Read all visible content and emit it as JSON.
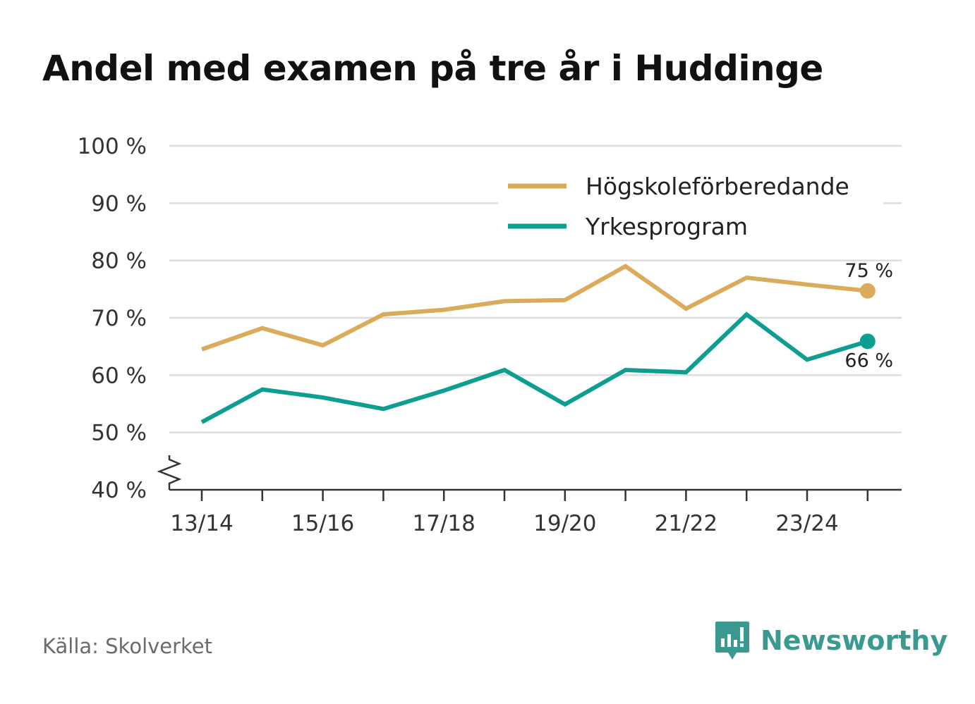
{
  "title": "Andel med examen på tre år i Huddinge",
  "source": "Källa: Skolverket",
  "brand": {
    "name": "Newsworthy",
    "icon": "newsworthy-logo-icon"
  },
  "colors": {
    "hogskole": "#d9ab5a",
    "yrkes": "#0d9e92",
    "grid": "#dddddd",
    "axis": "#333333",
    "brand": "#3a9a8f"
  },
  "chart_data": {
    "type": "line",
    "title": "Andel med examen på tre år i Huddinge",
    "xlabel": "",
    "ylabel": "",
    "ylim": [
      40,
      100
    ],
    "y_axis_break": true,
    "yticks": [
      40,
      50,
      60,
      70,
      80,
      90,
      100
    ],
    "ytick_labels": [
      "40 %",
      "50 %",
      "60 %",
      "70 %",
      "80 %",
      "90 %",
      "100 %"
    ],
    "categories": [
      "13/14",
      "14/15",
      "15/16",
      "16/17",
      "17/18",
      "18/19",
      "19/20",
      "20/21",
      "21/22",
      "22/23",
      "23/24",
      "24/25"
    ],
    "xtick_labels": [
      "13/14",
      "",
      "15/16",
      "",
      "17/18",
      "",
      "19/20",
      "",
      "21/22",
      "",
      "23/24",
      ""
    ],
    "grid": true,
    "legend_position": "top-right",
    "series": [
      {
        "name": "Högskoleförberedande",
        "values": [
          64.5,
          68.2,
          65.2,
          70.6,
          71.4,
          72.9,
          73.1,
          79.0,
          71.6,
          77.0,
          75.8,
          74.7
        ],
        "end_label": "75 %"
      },
      {
        "name": "Yrkesprogram",
        "values": [
          51.8,
          57.5,
          56.1,
          54.1,
          57.3,
          60.9,
          54.9,
          60.9,
          60.5,
          70.6,
          62.7,
          65.9
        ],
        "end_label": "66 %"
      }
    ]
  }
}
